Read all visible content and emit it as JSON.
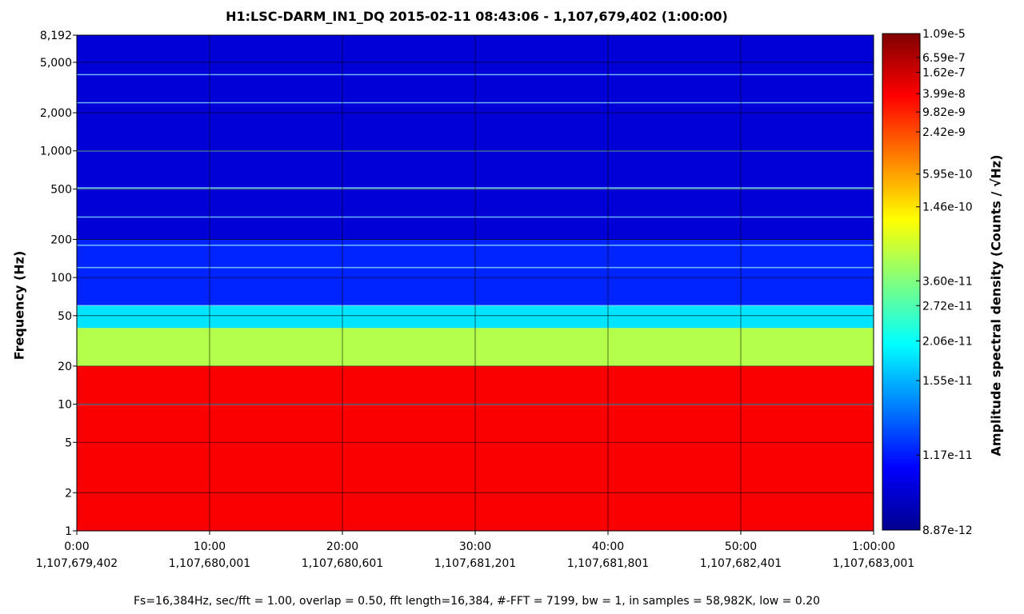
{
  "chart_data": {
    "type": "heatmap",
    "title": "H1:LSC-DARM_IN1_DQ 2015-02-11 08:43:06 - 1,107,679,402 (1:00:00)",
    "ylabel": "Frequency (Hz)",
    "colorbar_label": "Amplitude spectral density (Counts / √Hz)",
    "footer": "Fs=16,384Hz, sec/fft = 1.00, overlap = 0.50, fft length=16,384, #-FFT = 7199, bw = 1, in samples = 58,982K, low = 0.20",
    "y_scale": "log",
    "ylim": [
      1,
      8192
    ],
    "xlim_minutes": [
      0,
      60
    ],
    "grid": true,
    "colormap": "jet",
    "y_ticks": [
      {
        "value": 1,
        "label": "1"
      },
      {
        "value": 2,
        "label": "2"
      },
      {
        "value": 5,
        "label": "5"
      },
      {
        "value": 10,
        "label": "10"
      },
      {
        "value": 20,
        "label": "20"
      },
      {
        "value": 50,
        "label": "50"
      },
      {
        "value": 100,
        "label": "100"
      },
      {
        "value": 200,
        "label": "200"
      },
      {
        "value": 500,
        "label": "500"
      },
      {
        "value": 1000,
        "label": "1,000"
      },
      {
        "value": 2000,
        "label": "2,000"
      },
      {
        "value": 5000,
        "label": "5,000"
      },
      {
        "value": 8192,
        "label": "8,192"
      }
    ],
    "x_ticks": [
      {
        "value": 0,
        "time": "0:00",
        "gps": "1,107,679,402"
      },
      {
        "value": 10,
        "time": "10:00",
        "gps": "1,107,680,001"
      },
      {
        "value": 20,
        "time": "20:00",
        "gps": "1,107,680,601"
      },
      {
        "value": 30,
        "time": "30:00",
        "gps": "1,107,681,201"
      },
      {
        "value": 40,
        "time": "40:00",
        "gps": "1,107,681,801"
      },
      {
        "value": 50,
        "time": "50:00",
        "gps": "1,107,682,401"
      },
      {
        "value": 60,
        "time": "1:00:00",
        "gps": "1,107,683,001"
      }
    ],
    "colorbar_ticks": [
      {
        "label": "1.09e-5",
        "level": 1.0
      },
      {
        "label": "6.59e-7",
        "level": 0.952
      },
      {
        "label": "1.62e-7",
        "level": 0.922
      },
      {
        "label": "3.99e-8",
        "level": 0.879
      },
      {
        "label": "9.82e-9",
        "level": 0.842
      },
      {
        "label": "2.42e-9",
        "level": 0.802
      },
      {
        "label": "5.95e-10",
        "level": 0.717
      },
      {
        "label": "1.46e-10",
        "level": 0.651
      },
      {
        "label": "3.60e-11",
        "level": 0.502
      },
      {
        "label": "2.72e-11",
        "level": 0.452
      },
      {
        "label": "2.06e-11",
        "level": 0.381
      },
      {
        "label": "1.55e-11",
        "level": 0.301
      },
      {
        "label": "1.17e-11",
        "level": 0.151
      },
      {
        "label": "8.87e-12",
        "level": 0.0
      }
    ],
    "spectral_bands": [
      {
        "f_low": 1,
        "f_high": 20,
        "level": 0.88
      },
      {
        "f_low": 20,
        "f_high": 40,
        "level": 0.55
      },
      {
        "f_low": 40,
        "f_high": 60,
        "level": 0.35
      },
      {
        "f_low": 60,
        "f_high": 200,
        "level": 0.16
      },
      {
        "f_low": 200,
        "f_high": 8192,
        "level": 0.08
      }
    ],
    "spectral_lines_hz": [
      10,
      60,
      120,
      180,
      300,
      500,
      510,
      1000,
      2400,
      4000
    ]
  }
}
